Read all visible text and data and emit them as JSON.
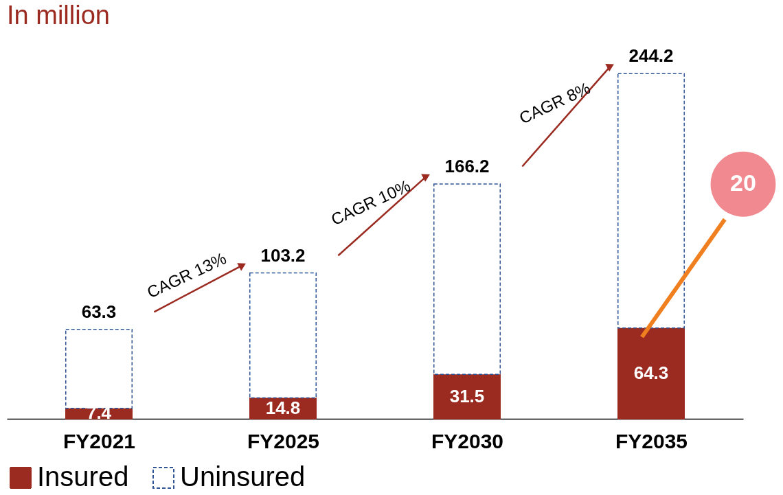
{
  "chart_data": {
    "type": "bar",
    "stacked": true,
    "title": "In million",
    "categories": [
      "FY2021",
      "FY2025",
      "FY2030",
      "FY2035"
    ],
    "series": [
      {
        "name": "Insured",
        "color": "#9b2a20",
        "values": [
          7.4,
          14.8,
          31.5,
          64.3
        ],
        "value_labels": [
          "7.4",
          "14.8",
          "31.5",
          "64.3"
        ]
      },
      {
        "name": "Uninsured",
        "color": "#2f5597",
        "values": [
          55.9,
          88.4,
          134.7,
          179.9
        ]
      }
    ],
    "totals": [
      "63.3",
      "103.2",
      "166.2",
      "244.2"
    ],
    "annotations": [
      "CAGR 13%",
      "CAGR 10%",
      "CAGR 8%",
      "20"
    ],
    "legend": "bottom"
  }
}
